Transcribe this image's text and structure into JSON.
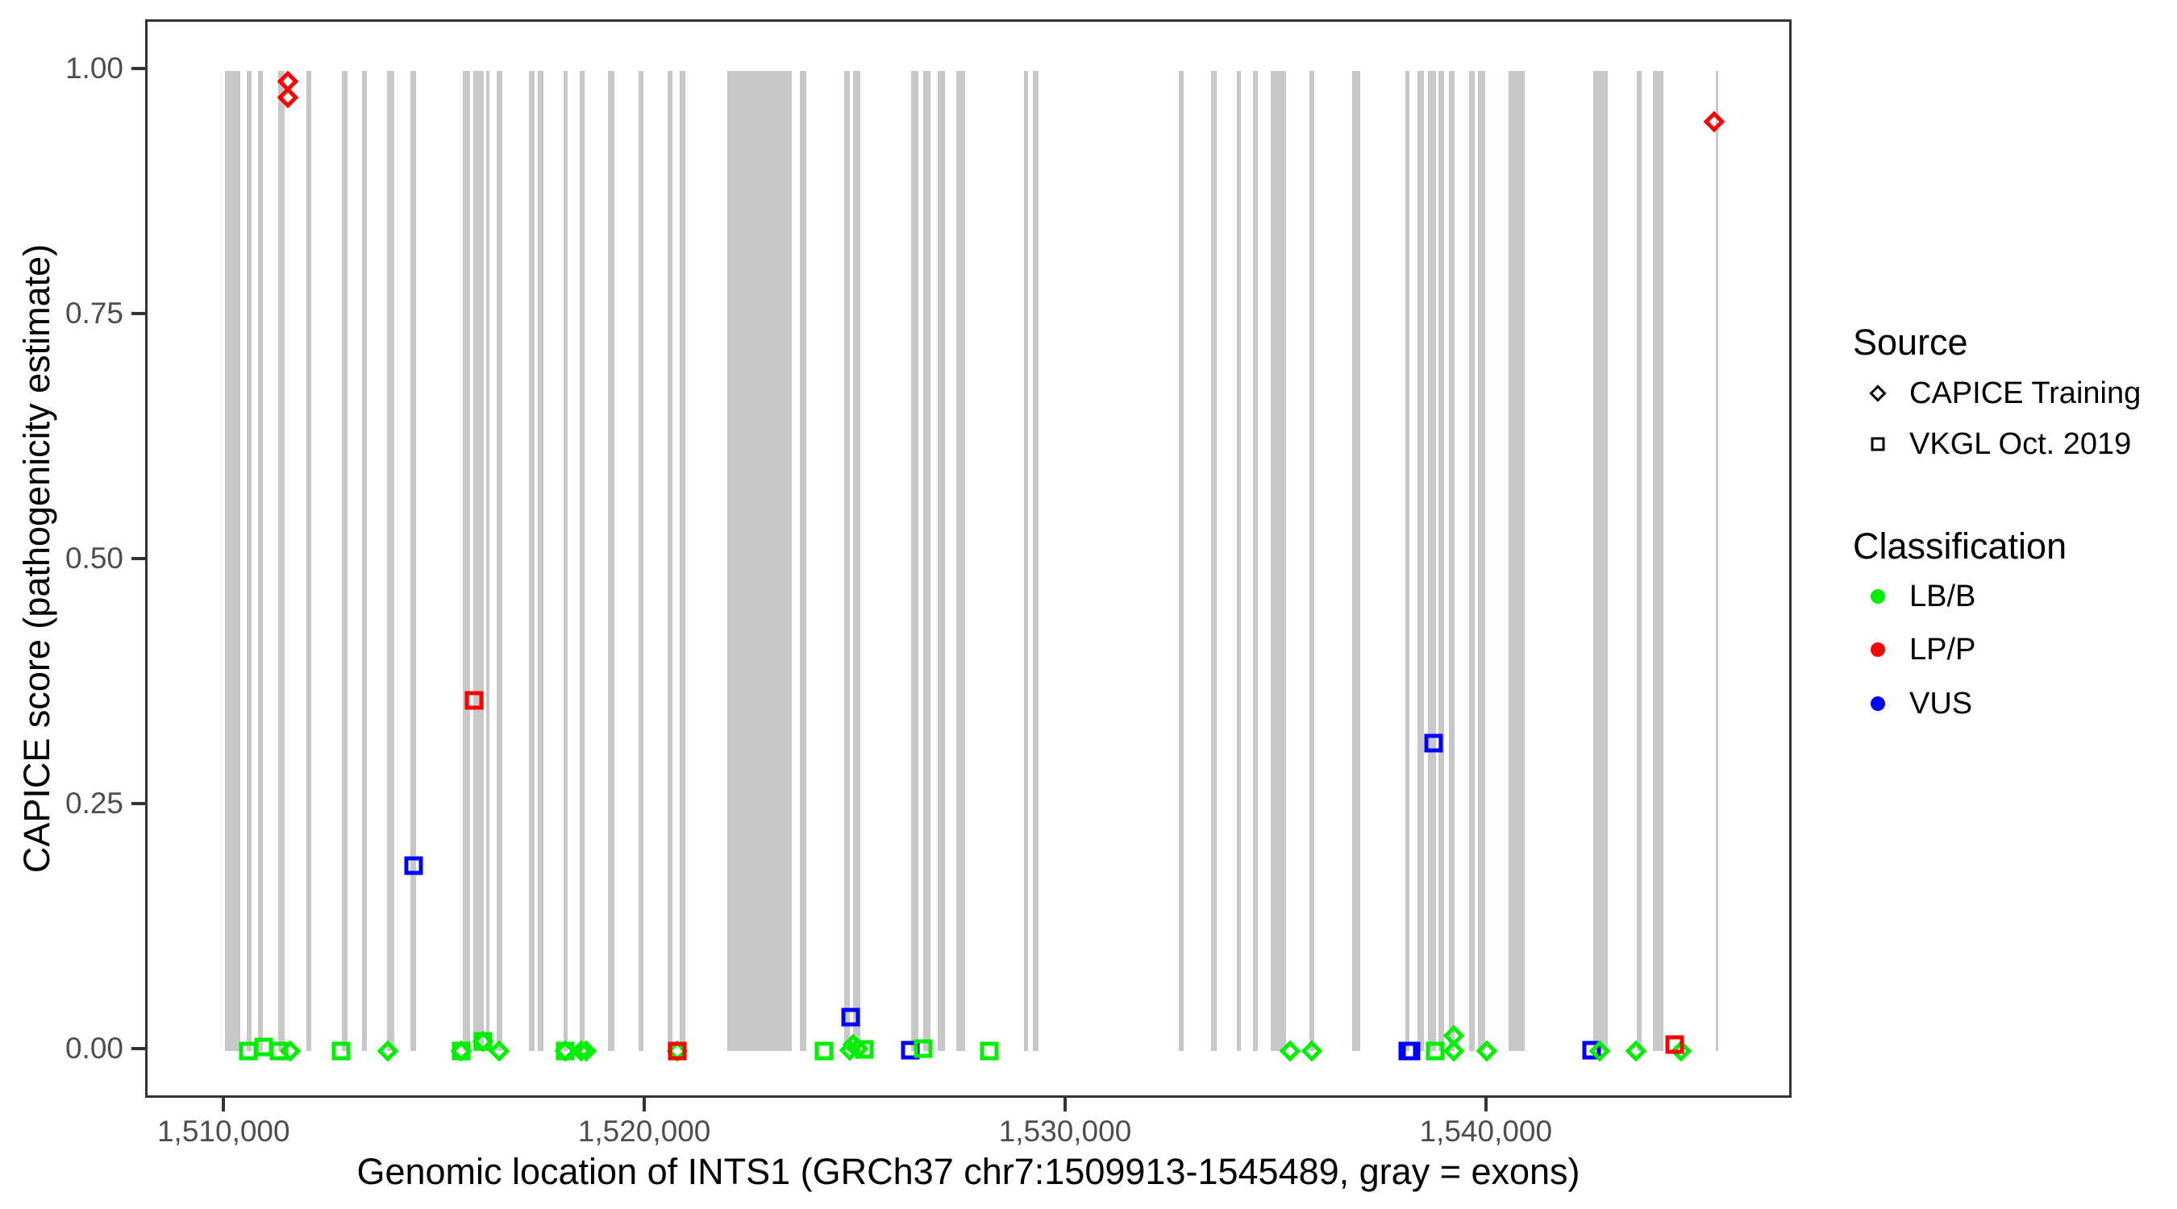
{
  "figure": {
    "y_axis_title": "CAPICE score (pathogenicity estimate)",
    "x_axis_title": "Genomic location of INTS1 (GRCh37 chr7:1509913-1545489, gray = exons)",
    "legend": {
      "source_title": "Source",
      "source_items": [
        {
          "shape": "diamond",
          "label": "CAPICE Training"
        },
        {
          "shape": "square",
          "label": "VKGL Oct. 2019"
        }
      ],
      "classification_title": "Classification",
      "classification_items": [
        {
          "label": "LB/B",
          "color": "#00ee00"
        },
        {
          "label": "LP/P",
          "color": "#ff0000"
        },
        {
          "label": "VUS",
          "color": "#0000ff"
        }
      ]
    },
    "colors": {
      "exon_gray": "#c8c8c8",
      "lbb_green": "#00ee00",
      "lpp_red": "#ff0000",
      "vus_blue": "#0000ff",
      "panel_border": "#333333",
      "tick_text": "#4d4d4d"
    }
  },
  "chart_data": {
    "type": "scatter",
    "title": "",
    "xlabel": "Genomic location of INTS1 (GRCh37 chr7:1509913-1545489, gray = exons)",
    "ylabel": "CAPICE score (pathogenicity estimate)",
    "x_domain": [
      1508135,
      1547267
    ],
    "y_domain": [
      -0.05,
      1.05
    ],
    "x_ticks": [
      {
        "value": 1510000,
        "label": "1,510,000"
      },
      {
        "value": 1520000,
        "label": "1,520,000"
      },
      {
        "value": 1530000,
        "label": "1,530,000"
      },
      {
        "value": 1540000,
        "label": "1,540,000"
      }
    ],
    "y_ticks": [
      {
        "value": 1.0,
        "label": "1.00"
      },
      {
        "value": 0.75,
        "label": "0.75"
      },
      {
        "value": 0.5,
        "label": "0.50"
      },
      {
        "value": 0.25,
        "label": "0.25"
      },
      {
        "value": 0.0,
        "label": "0.00"
      }
    ],
    "legend_position": "right",
    "grid": false,
    "exon_span": {
      "ymin": 0.0,
      "ymax": 1.0
    },
    "exons": [
      [
        1509980,
        1510330
      ],
      [
        1510500,
        1510610
      ],
      [
        1510750,
        1510880
      ],
      [
        1511230,
        1511400
      ],
      [
        1511900,
        1512030
      ],
      [
        1512760,
        1512890
      ],
      [
        1513230,
        1513350
      ],
      [
        1513830,
        1514000
      ],
      [
        1514380,
        1514520
      ],
      [
        1515630,
        1515800
      ],
      [
        1515880,
        1516120
      ],
      [
        1516180,
        1516260
      ],
      [
        1516430,
        1516560
      ],
      [
        1517200,
        1517330
      ],
      [
        1517410,
        1517540
      ],
      [
        1518020,
        1518130
      ],
      [
        1518400,
        1518520
      ],
      [
        1519070,
        1519240
      ],
      [
        1519800,
        1519930
      ],
      [
        1520490,
        1520620
      ],
      [
        1520790,
        1520910
      ],
      [
        1521920,
        1523450
      ],
      [
        1523630,
        1523800
      ],
      [
        1524700,
        1524830
      ],
      [
        1524910,
        1525080
      ],
      [
        1526290,
        1526460
      ],
      [
        1526570,
        1526750
      ],
      [
        1526920,
        1527090
      ],
      [
        1527360,
        1527570
      ],
      [
        1528970,
        1529060
      ],
      [
        1529180,
        1529310
      ],
      [
        1532640,
        1532770
      ],
      [
        1533410,
        1533540
      ],
      [
        1534020,
        1534130
      ],
      [
        1534400,
        1534520
      ],
      [
        1534820,
        1535190
      ],
      [
        1535740,
        1535870
      ],
      [
        1536770,
        1536950
      ],
      [
        1538020,
        1538130
      ],
      [
        1538310,
        1538480
      ],
      [
        1538570,
        1538750
      ],
      [
        1538820,
        1538960
      ],
      [
        1539070,
        1539200
      ],
      [
        1539550,
        1539680
      ],
      [
        1539760,
        1539930
      ],
      [
        1540490,
        1540870
      ],
      [
        1542500,
        1542840
      ],
      [
        1543530,
        1543650
      ],
      [
        1543910,
        1544160
      ],
      [
        1545410,
        1545460
      ]
    ],
    "points": [
      {
        "x": 1510536,
        "y": 0.0,
        "source": "VKGL Oct. 2019",
        "classification": "LB/B"
      },
      {
        "x": 1510900,
        "y": 0.004,
        "source": "VKGL Oct. 2019",
        "classification": "LB/B"
      },
      {
        "x": 1511263,
        "y": 0.0,
        "source": "VKGL Oct. 2019",
        "classification": "LB/B"
      },
      {
        "x": 1511531,
        "y": 0.0,
        "source": "CAPICE Training",
        "classification": "LB/B"
      },
      {
        "x": 1511474,
        "y": 0.989,
        "source": "CAPICE Training",
        "classification": "LP/P"
      },
      {
        "x": 1511474,
        "y": 0.973,
        "source": "CAPICE Training",
        "classification": "LP/P"
      },
      {
        "x": 1512737,
        "y": 0.0,
        "source": "VKGL Oct. 2019",
        "classification": "LB/B"
      },
      {
        "x": 1513847,
        "y": 0.0,
        "source": "CAPICE Training",
        "classification": "LB/B"
      },
      {
        "x": 1514459,
        "y": 0.189,
        "source": "VKGL Oct. 2019",
        "classification": "VUS"
      },
      {
        "x": 1515588,
        "y": 0.0,
        "source": "VKGL Oct. 2019",
        "classification": "LB/B"
      },
      {
        "x": 1515588,
        "y": 0.0,
        "source": "CAPICE Training",
        "classification": "LB/B"
      },
      {
        "x": 1515895,
        "y": 0.358,
        "source": "VKGL Oct. 2019",
        "classification": "LP/P"
      },
      {
        "x": 1516105,
        "y": 0.01,
        "source": "VKGL Oct. 2019",
        "classification": "LB/B"
      },
      {
        "x": 1516105,
        "y": 0.01,
        "source": "CAPICE Training",
        "classification": "LB/B"
      },
      {
        "x": 1516488,
        "y": 0.0,
        "source": "CAPICE Training",
        "classification": "LB/B"
      },
      {
        "x": 1518057,
        "y": 0.0,
        "source": "VKGL Oct. 2019",
        "classification": "LB/B"
      },
      {
        "x": 1518057,
        "y": 0.0,
        "source": "CAPICE Training",
        "classification": "LB/B"
      },
      {
        "x": 1518440,
        "y": 0.0,
        "source": "CAPICE Training",
        "classification": "LB/B"
      },
      {
        "x": 1518550,
        "y": 0.0,
        "source": "CAPICE Training",
        "classification": "LB/B"
      },
      {
        "x": 1520717,
        "y": 0.0,
        "source": "CAPICE Training",
        "classification": "LB/B"
      },
      {
        "x": 1520717,
        "y": 0.0,
        "source": "VKGL Oct. 2019",
        "classification": "LP/P"
      },
      {
        "x": 1524220,
        "y": 0.0,
        "source": "VKGL Oct. 2019",
        "classification": "LB/B"
      },
      {
        "x": 1524852,
        "y": 0.035,
        "source": "VKGL Oct. 2019",
        "classification": "VUS"
      },
      {
        "x": 1524830,
        "y": 0.001,
        "source": "CAPICE Training",
        "classification": "LB/B"
      },
      {
        "x": 1524900,
        "y": 0.007,
        "source": "CAPICE Training",
        "classification": "LB/B"
      },
      {
        "x": 1525010,
        "y": 0.003,
        "source": "CAPICE Training",
        "classification": "LB/B"
      },
      {
        "x": 1525170,
        "y": 0.002,
        "source": "VKGL Oct. 2019",
        "classification": "LB/B"
      },
      {
        "x": 1526268,
        "y": 0.001,
        "source": "VKGL Oct. 2019",
        "classification": "VUS"
      },
      {
        "x": 1526574,
        "y": 0.003,
        "source": "VKGL Oct. 2019",
        "classification": "LB/B"
      },
      {
        "x": 1528143,
        "y": 0.0,
        "source": "VKGL Oct. 2019",
        "classification": "LB/B"
      },
      {
        "x": 1535281,
        "y": 0.0,
        "source": "CAPICE Training",
        "classification": "LB/B"
      },
      {
        "x": 1535798,
        "y": 0.0,
        "source": "CAPICE Training",
        "classification": "LB/B"
      },
      {
        "x": 1538080,
        "y": 0.0,
        "source": "VKGL Oct. 2019",
        "classification": "VUS"
      },
      {
        "x": 1538160,
        "y": 0.0,
        "source": "VKGL Oct. 2019",
        "classification": "VUS"
      },
      {
        "x": 1538708,
        "y": 0.314,
        "source": "VKGL Oct. 2019",
        "classification": "VUS"
      },
      {
        "x": 1538746,
        "y": 0.0,
        "source": "VKGL Oct. 2019",
        "classification": "LB/B"
      },
      {
        "x": 1539187,
        "y": 0.016,
        "source": "CAPICE Training",
        "classification": "LB/B"
      },
      {
        "x": 1539187,
        "y": 0.0,
        "source": "CAPICE Training",
        "classification": "LB/B"
      },
      {
        "x": 1539970,
        "y": 0.0,
        "source": "CAPICE Training",
        "classification": "LB/B"
      },
      {
        "x": 1542459,
        "y": 0.001,
        "source": "VKGL Oct. 2019",
        "classification": "VUS"
      },
      {
        "x": 1542650,
        "y": 0.0,
        "source": "CAPICE Training",
        "classification": "LB/B"
      },
      {
        "x": 1543511,
        "y": 0.0,
        "source": "CAPICE Training",
        "classification": "LB/B"
      },
      {
        "x": 1545368,
        "y": 0.948,
        "source": "CAPICE Training",
        "classification": "LP/P"
      },
      {
        "x": 1544583,
        "y": 0.0,
        "source": "CAPICE Training",
        "classification": "LB/B"
      },
      {
        "x": 1544430,
        "y": 0.007,
        "source": "VKGL Oct. 2019",
        "classification": "LP/P"
      }
    ]
  }
}
